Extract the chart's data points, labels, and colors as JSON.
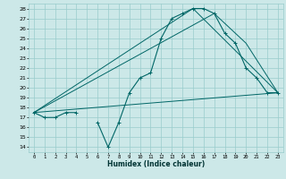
{
  "xlabel": "Humidex (Indice chaleur)",
  "bg_color": "#cce8e8",
  "grid_color": "#99cccc",
  "line_color": "#006666",
  "xlim": [
    -0.5,
    23.5
  ],
  "ylim": [
    13.5,
    28.5
  ],
  "xticks": [
    0,
    1,
    2,
    3,
    4,
    5,
    6,
    7,
    8,
    9,
    10,
    11,
    12,
    13,
    14,
    15,
    16,
    17,
    18,
    19,
    20,
    21,
    22,
    23
  ],
  "yticks": [
    14,
    15,
    16,
    17,
    18,
    19,
    20,
    21,
    22,
    23,
    24,
    25,
    26,
    27,
    28
  ],
  "main_curve": {
    "x": [
      0,
      1,
      2,
      3,
      4,
      6,
      7,
      8,
      9,
      10,
      11,
      12,
      13,
      14,
      15,
      16,
      17,
      18,
      19,
      20,
      21,
      22,
      23
    ],
    "y": [
      17.5,
      17.0,
      17.0,
      17.5,
      17.5,
      16.5,
      14.0,
      16.5,
      19.5,
      21.0,
      21.5,
      25.0,
      27.0,
      27.5,
      28.0,
      28.0,
      27.5,
      25.5,
      24.5,
      22.0,
      21.0,
      19.5,
      19.5
    ]
  },
  "line1": {
    "x": [
      0,
      23
    ],
    "y": [
      17.5,
      19.5
    ]
  },
  "line2": {
    "x": [
      0,
      15,
      23
    ],
    "y": [
      17.5,
      28.0,
      19.5
    ]
  },
  "line3": {
    "x": [
      0,
      17,
      20,
      23
    ],
    "y": [
      17.5,
      27.5,
      24.5,
      19.5
    ]
  }
}
